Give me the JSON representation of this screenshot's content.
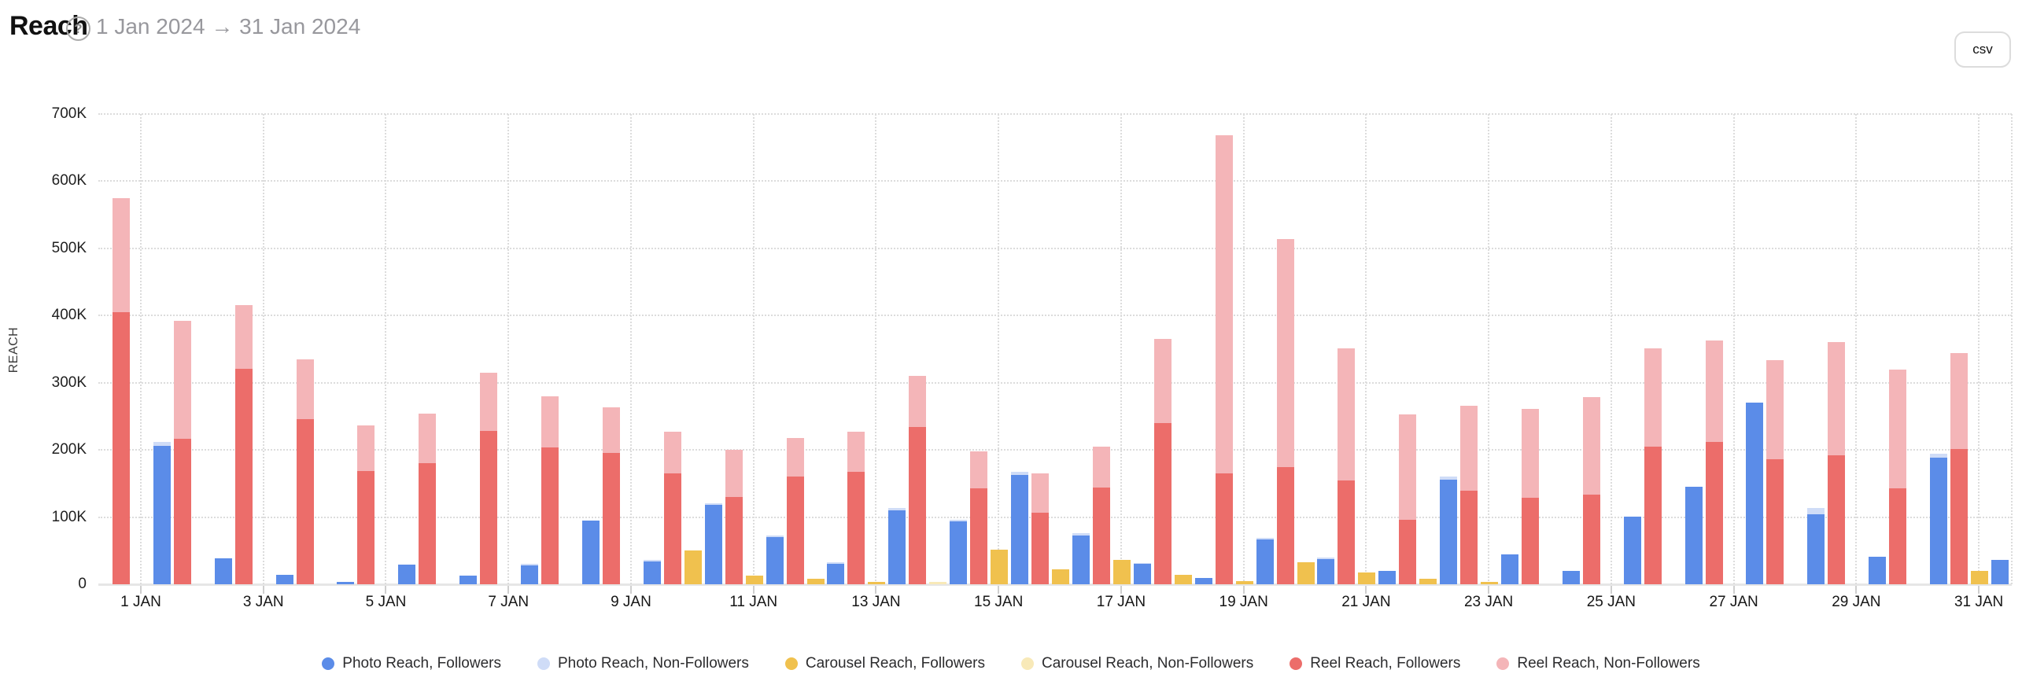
{
  "header": {
    "title": "Reach",
    "help_icon": "?",
    "date_range": "1 Jan 2024 → 31 Jan 2024",
    "csv_label": "csv"
  },
  "chart_data": {
    "type": "bar",
    "title": "Reach",
    "ylabel": "REACH",
    "xlabel": "",
    "ylim": [
      0,
      700000
    ],
    "grid": "dotted",
    "legend_position": "bottom",
    "y_ticks": [
      "0",
      "100K",
      "200K",
      "300K",
      "400K",
      "500K",
      "600K",
      "700K"
    ],
    "x_tick_labels": [
      "1 JAN",
      "3 JAN",
      "5 JAN",
      "7 JAN",
      "9 JAN",
      "11 JAN",
      "13 JAN",
      "15 JAN",
      "17 JAN",
      "19 JAN",
      "21 JAN",
      "23 JAN",
      "25 JAN",
      "27 JAN",
      "29 JAN",
      "31 JAN"
    ],
    "series_order_within_group": [
      "photo",
      "reel",
      "carousel"
    ],
    "colors": {
      "photo_followers": "#5b8ce8",
      "photo_non_followers": "#cfdcf7",
      "carousel_followers": "#f0c14e",
      "carousel_non_followers": "#f8e9b8",
      "reel_followers": "#ec6d6a",
      "reel_non_followers": "#f4b5b8"
    },
    "legend": [
      {
        "id": "photo_followers",
        "label": "Photo Reach, Followers",
        "color": "#5b8ce8"
      },
      {
        "id": "photo_non_followers",
        "label": "Photo Reach, Non-Followers",
        "color": "#cfdcf7"
      },
      {
        "id": "carousel_followers",
        "label": "Carousel Reach, Followers",
        "color": "#f0c14e"
      },
      {
        "id": "carousel_non_followers",
        "label": "Carousel Reach, Non-Followers",
        "color": "#f8e9b8"
      },
      {
        "id": "reel_followers",
        "label": "Reel Reach, Followers",
        "color": "#ec6d6a"
      },
      {
        "id": "reel_non_followers",
        "label": "Reel Reach, Non-Followers",
        "color": "#f4b5b8"
      }
    ],
    "days": [
      {
        "date": "1 Jan",
        "photo": [
          0,
          0
        ],
        "carousel": [
          0,
          0
        ],
        "reel": [
          405000,
          170000
        ]
      },
      {
        "date": "2 Jan",
        "photo": [
          206000,
          6000
        ],
        "carousel": [
          0,
          0
        ],
        "reel": [
          216000,
          176000
        ]
      },
      {
        "date": "3 Jan",
        "photo": [
          39000,
          0
        ],
        "carousel": [
          0,
          0
        ],
        "reel": [
          321000,
          94000
        ]
      },
      {
        "date": "4 Jan",
        "photo": [
          14000,
          0
        ],
        "carousel": [
          0,
          0
        ],
        "reel": [
          246000,
          89000
        ]
      },
      {
        "date": "5 Jan",
        "photo": [
          4000,
          0
        ],
        "carousel": [
          0,
          0
        ],
        "reel": [
          169000,
          67000
        ]
      },
      {
        "date": "6 Jan",
        "photo": [
          29000,
          0
        ],
        "carousel": [
          0,
          0
        ],
        "reel": [
          180000,
          74000
        ]
      },
      {
        "date": "7 Jan",
        "photo": [
          13000,
          0
        ],
        "carousel": [
          0,
          0
        ],
        "reel": [
          228000,
          87000
        ]
      },
      {
        "date": "8 Jan",
        "photo": [
          28000,
          2000
        ],
        "carousel": [
          0,
          0
        ],
        "reel": [
          204000,
          76000
        ]
      },
      {
        "date": "9 Jan",
        "photo": [
          95000,
          0
        ],
        "carousel": [
          0,
          0
        ],
        "reel": [
          195000,
          68000
        ]
      },
      {
        "date": "10 Jan",
        "photo": [
          34000,
          2000
        ],
        "carousel": [
          50000,
          0
        ],
        "reel": [
          165000,
          62000
        ]
      },
      {
        "date": "11 Jan",
        "photo": [
          118000,
          3000
        ],
        "carousel": [
          13000,
          0
        ],
        "reel": [
          130000,
          70000
        ]
      },
      {
        "date": "12 Jan",
        "photo": [
          70000,
          3000
        ],
        "carousel": [
          8000,
          0
        ],
        "reel": [
          160000,
          58000
        ]
      },
      {
        "date": "13 Jan",
        "photo": [
          31000,
          2000
        ],
        "carousel": [
          4000,
          0
        ],
        "reel": [
          167000,
          60000
        ]
      },
      {
        "date": "14 Jan",
        "photo": [
          110000,
          3000
        ],
        "carousel": [
          0,
          3000
        ],
        "reel": [
          234000,
          76000
        ]
      },
      {
        "date": "15 Jan",
        "photo": [
          94000,
          2000
        ],
        "carousel": [
          52000,
          0
        ],
        "reel": [
          143000,
          55000
        ]
      },
      {
        "date": "16 Jan",
        "photo": [
          163000,
          4000
        ],
        "carousel": [
          22000,
          0
        ],
        "reel": [
          106000,
          59000
        ]
      },
      {
        "date": "17 Jan",
        "photo": [
          72000,
          4000
        ],
        "carousel": [
          36000,
          0
        ],
        "reel": [
          144000,
          61000
        ]
      },
      {
        "date": "18 Jan",
        "photo": [
          30000,
          2000
        ],
        "carousel": [
          14000,
          0
        ],
        "reel": [
          240000,
          125000
        ]
      },
      {
        "date": "19 Jan",
        "photo": [
          9000,
          0
        ],
        "carousel": [
          5000,
          0
        ],
        "reel": [
          165000,
          503000
        ]
      },
      {
        "date": "20 Jan",
        "photo": [
          67000,
          2000
        ],
        "carousel": [
          33000,
          0
        ],
        "reel": [
          174000,
          340000
        ]
      },
      {
        "date": "21 Jan",
        "photo": [
          38000,
          2000
        ],
        "carousel": [
          17000,
          0
        ],
        "reel": [
          155000,
          196000
        ]
      },
      {
        "date": "22 Jan",
        "photo": [
          20000,
          0
        ],
        "carousel": [
          8000,
          0
        ],
        "reel": [
          96000,
          157000
        ]
      },
      {
        "date": "23 Jan",
        "photo": [
          156000,
          4000
        ],
        "carousel": [
          3000,
          0
        ],
        "reel": [
          139000,
          127000
        ]
      },
      {
        "date": "24 Jan",
        "photo": [
          45000,
          0
        ],
        "carousel": [
          0,
          0
        ],
        "reel": [
          129000,
          132000
        ]
      },
      {
        "date": "25 Jan",
        "photo": [
          20000,
          0
        ],
        "carousel": [
          0,
          0
        ],
        "reel": [
          134000,
          145000
        ]
      },
      {
        "date": "26 Jan",
        "photo": [
          101000,
          0
        ],
        "carousel": [
          0,
          0
        ],
        "reel": [
          205000,
          146000
        ]
      },
      {
        "date": "27 Jan",
        "photo": [
          145000,
          0
        ],
        "carousel": [
          0,
          0
        ],
        "reel": [
          212000,
          151000
        ]
      },
      {
        "date": "28 Jan",
        "photo": [
          270000,
          0
        ],
        "carousel": [
          0,
          0
        ],
        "reel": [
          186000,
          148000
        ]
      },
      {
        "date": "29 Jan",
        "photo": [
          104000,
          9000
        ],
        "carousel": [
          0,
          0
        ],
        "reel": [
          192000,
          168000
        ]
      },
      {
        "date": "30 Jan",
        "photo": [
          41000,
          0
        ],
        "carousel": [
          0,
          0
        ],
        "reel": [
          143000,
          177000
        ]
      },
      {
        "date": "31 Jan",
        "photo": [
          188000,
          6000
        ],
        "carousel": [
          20000,
          0
        ],
        "reel": [
          201000,
          143000
        ]
      },
      {
        "date": "1 Feb",
        "photo": [
          36000,
          0
        ],
        "carousel": [
          0,
          0
        ],
        "reel": [
          0,
          0
        ]
      }
    ]
  }
}
